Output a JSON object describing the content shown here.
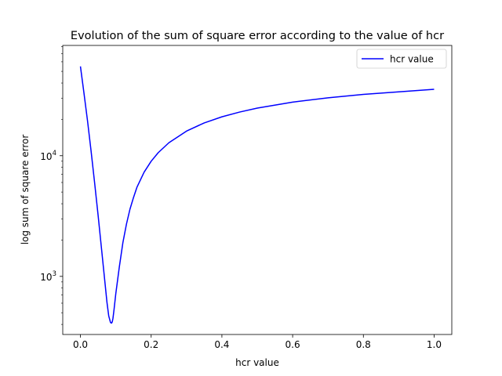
{
  "chart_data": {
    "type": "line",
    "title": "Evolution of the sum of square error according to the value of hcr",
    "xlabel": "hcr value",
    "ylabel": "log sum of square error",
    "xlim": [
      -0.05,
      1.05
    ],
    "ylim": [
      330,
      82000
    ],
    "yscale": "log",
    "grid": false,
    "legend_position": "top-right",
    "x_ticks": [
      {
        "value": 0.0,
        "label": "0.0"
      },
      {
        "value": 0.2,
        "label": "0.2"
      },
      {
        "value": 0.4,
        "label": "0.4"
      },
      {
        "value": 0.6,
        "label": "0.6"
      },
      {
        "value": 0.8,
        "label": "0.8"
      },
      {
        "value": 1.0,
        "label": "1.0"
      }
    ],
    "y_ticks": [
      {
        "value": 1000,
        "base": "10",
        "exp": "3"
      },
      {
        "value": 10000,
        "base": "10",
        "exp": "4"
      }
    ],
    "series": [
      {
        "name": "hcr value",
        "color": "#0000ff",
        "x": [
          0.0,
          0.01,
          0.02,
          0.03,
          0.04,
          0.05,
          0.06,
          0.07,
          0.075,
          0.08,
          0.085,
          0.088,
          0.09,
          0.092,
          0.095,
          0.1,
          0.11,
          0.12,
          0.13,
          0.14,
          0.15,
          0.16,
          0.18,
          0.2,
          0.22,
          0.25,
          0.3,
          0.35,
          0.4,
          0.45,
          0.5,
          0.6,
          0.7,
          0.8,
          0.9,
          1.0
        ],
        "y": [
          55000,
          33000,
          19500,
          11000,
          6000,
          3200,
          1650,
          850,
          610,
          470,
          415,
          410,
          420,
          450,
          530,
          720,
          1200,
          1900,
          2700,
          3600,
          4500,
          5500,
          7300,
          9000,
          10600,
          12800,
          16000,
          18700,
          21000,
          23000,
          24800,
          27800,
          30200,
          32200,
          33800,
          35500
        ]
      }
    ]
  }
}
